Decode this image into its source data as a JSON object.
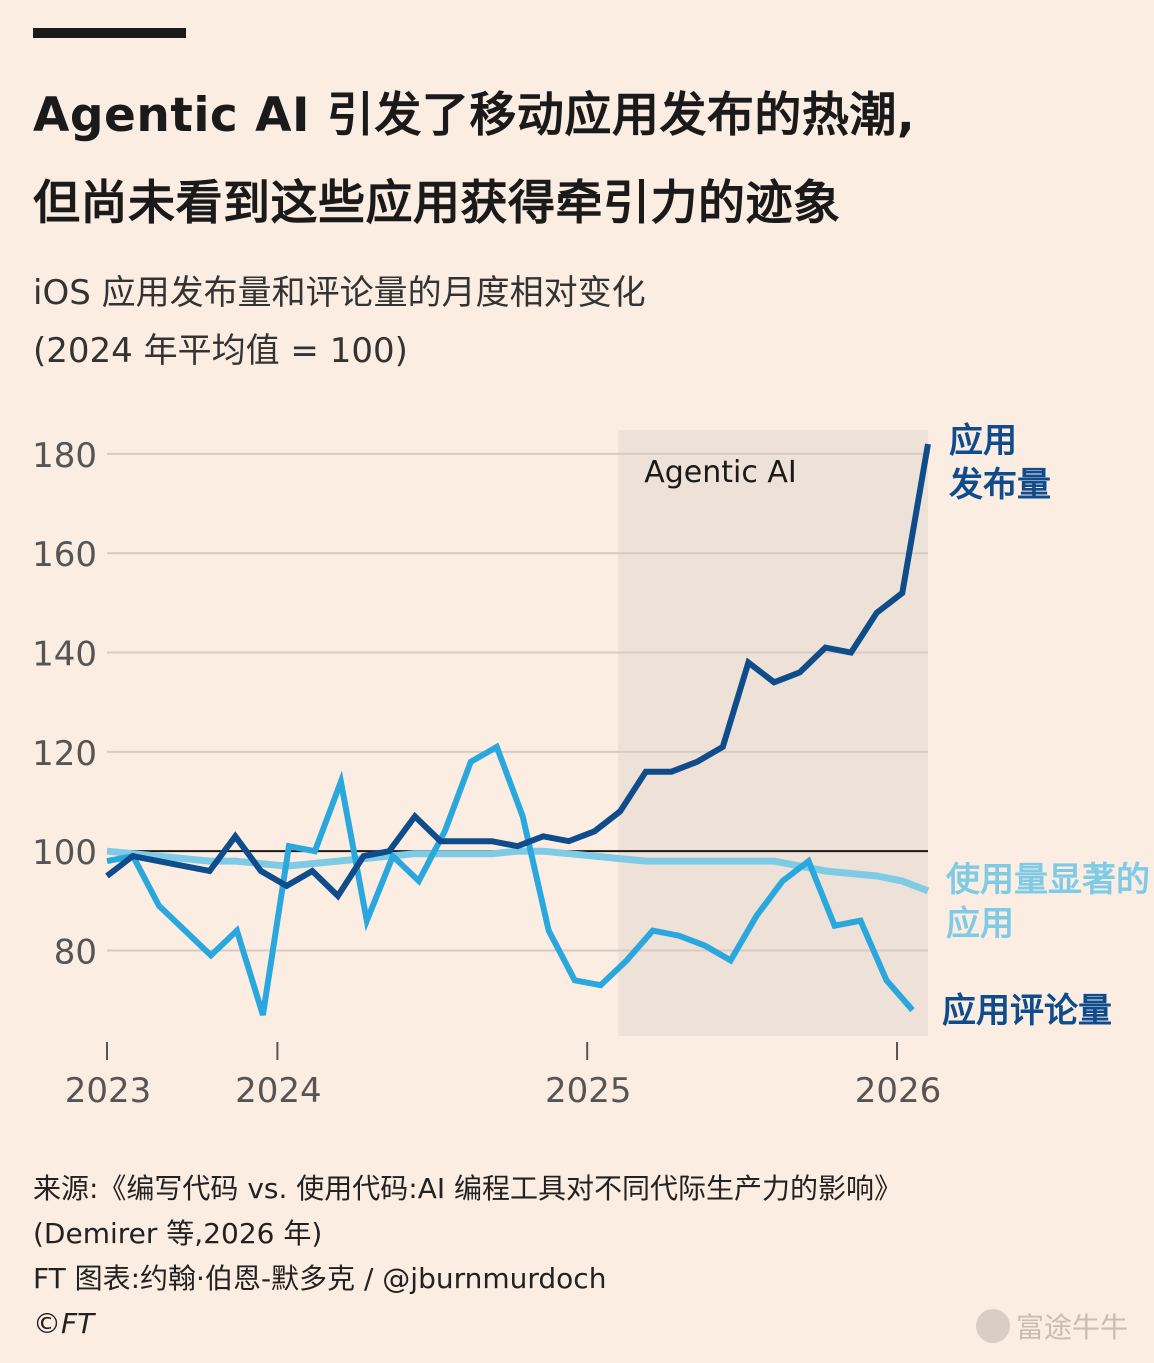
{
  "title": {
    "line1": "Agentic AI 引发了移动应用发布的热潮,",
    "line2": "但尚未看到这些应用获得牵引力的迹象"
  },
  "subtitle": {
    "line1": "iOS 应用发布量和评论量的月度相对变化",
    "line2": "(2024 年平均值 = 100)"
  },
  "chart_data": {
    "type": "line",
    "yticks": [
      80,
      100,
      120,
      140,
      160,
      180
    ],
    "ylim": [
      66,
      182
    ],
    "xlim": [
      0,
      39
    ],
    "xticks": [
      {
        "label": "2023",
        "x": 0
      },
      {
        "label": "2024",
        "x": 11
      },
      {
        "label": "2025",
        "x": 31
      },
      {
        "label": "2026",
        "x": 51
      }
    ],
    "x_axis_dates": "monthly, x = months since Jan 2023",
    "reference_line": 100,
    "shaded_region": {
      "label": "Agentic AI",
      "x_start": 33,
      "x_end": 53
    },
    "series": [
      {
        "name": "应用发布量",
        "color": "#0f4c8c",
        "values": [
          95,
          99,
          98,
          97,
          96,
          103,
          96,
          93,
          96,
          91,
          99,
          100,
          107,
          102,
          102,
          102,
          101,
          103,
          102,
          104,
          108,
          116,
          116,
          118,
          121,
          138,
          134,
          136,
          141,
          140,
          148,
          152,
          182
        ]
      },
      {
        "name": "使用量显著的 应用",
        "color": "#7fcbe6",
        "values": [
          100,
          99.5,
          99,
          98.5,
          98,
          98,
          97.5,
          97,
          97.5,
          98,
          98.5,
          99,
          99.5,
          99.5,
          99.5,
          99.5,
          100,
          100,
          99.5,
          99,
          98.5,
          98,
          98,
          98,
          98,
          98,
          98,
          97,
          96,
          95.5,
          95,
          94,
          92
        ]
      },
      {
        "name": "应用评论量",
        "color": "#2aa8de",
        "values": [
          98,
          99,
          89,
          84,
          79,
          84,
          67,
          101,
          100,
          114,
          86,
          99,
          94,
          104,
          118,
          121,
          107,
          84,
          74,
          73,
          78,
          84,
          83,
          81,
          78,
          87,
          94,
          98,
          85,
          86,
          74,
          68
        ]
      }
    ],
    "labels": {
      "shaded": "Agentic AI",
      "launches_line1": "应用",
      "launches_line2": "发布量",
      "usage_line1": "使用量显著的",
      "usage_line2": "应用",
      "reviews": "应用评论量"
    }
  },
  "footer": {
    "source_line1": "来源:《编写代码 vs. 使用代码:AI 编程工具对不同代际生产力的影响》",
    "source_line2": "(Demirer 等,2026 年)",
    "credit": "FT 图表:约翰·伯恩-默多克 / @jburnmurdoch",
    "copyright": "©FT"
  },
  "watermark": "富途牛牛",
  "colors": {
    "background": "#fcede3",
    "shade": "#eee1d8",
    "grid": "#d6cbc2",
    "launches": "#0f4c8c",
    "usage": "#7fcbe6",
    "reviews": "#2aa8de"
  }
}
